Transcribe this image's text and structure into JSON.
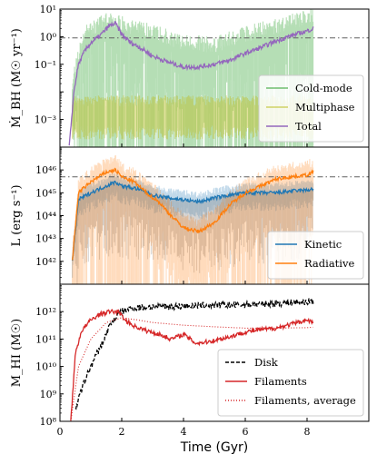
{
  "chart_data": [
    {
      "type": "line",
      "panel": "top",
      "ylabel": "Ṁ_BH (M☉ yr⁻¹)",
      "yscale": "log",
      "ylim": [
        0.0001,
        10
      ],
      "xlim": [
        0,
        10
      ],
      "y_ticks": [
        {
          "value": 0.001,
          "label": "10⁻³"
        },
        {
          "value": 0.1,
          "label": "10⁻¹"
        },
        {
          "value": 1,
          "label": "10⁰"
        },
        {
          "value": 10,
          "label": "10¹"
        }
      ],
      "reference_line": 0.9,
      "legend_position": "lower-right",
      "series": [
        {
          "name": "Cold-mode",
          "color": "#2ca02c",
          "style": "filled-noisy",
          "x": [
            0.4,
            0.8,
            1.5,
            2,
            3,
            4,
            5,
            6,
            7,
            8,
            8.2
          ],
          "y": [
            0.01,
            0.6,
            1.5,
            1.2,
            0.6,
            0.25,
            0.2,
            0.5,
            1,
            2,
            2
          ]
        },
        {
          "name": "Multiphase",
          "color": "#bcbd22",
          "style": "filled-noisy",
          "x": [
            0.4,
            1,
            2,
            3,
            4,
            5,
            6,
            7,
            8,
            8.2
          ],
          "y": [
            0.0015,
            0.0015,
            0.0015,
            0.0015,
            0.0015,
            0.0015,
            0.0015,
            0.0015,
            0.0015,
            0.0015
          ]
        },
        {
          "name": "Total",
          "color": "#9467bd",
          "style": "line",
          "x": [
            0.3,
            0.45,
            0.6,
            0.8,
            1,
            1.3,
            1.6,
            1.8,
            2.0,
            2.3,
            2.6,
            3,
            3.5,
            4,
            4.5,
            5,
            5.5,
            6,
            6.5,
            7,
            7.5,
            8,
            8.2
          ],
          "y": [
            0.0001,
            0.01,
            0.1,
            0.3,
            0.6,
            1.1,
            2.5,
            3,
            1.2,
            0.6,
            0.4,
            0.2,
            0.12,
            0.08,
            0.08,
            0.1,
            0.14,
            0.25,
            0.4,
            0.7,
            1.1,
            1.6,
            2
          ]
        }
      ]
    },
    {
      "type": "line",
      "panel": "middle",
      "ylabel": "L (erg s⁻¹)",
      "yscale": "log",
      "ylim": [
        1e+41,
        1e+47
      ],
      "xlim": [
        0,
        10
      ],
      "y_ticks": [
        {
          "value": 1e+42,
          "label": "10⁴²"
        },
        {
          "value": 1e+43,
          "label": "10⁴³"
        },
        {
          "value": 1e+44,
          "label": "10⁴⁴"
        },
        {
          "value": 1e+45,
          "label": "10⁴⁵"
        },
        {
          "value": 1e+46,
          "label": "10⁴⁶"
        }
      ],
      "reference_line": 5e+45,
      "legend_position": "lower-right",
      "series": [
        {
          "name": "Kinetic",
          "color": "#1f77b4",
          "style": "line-with-band",
          "x": [
            0.4,
            0.6,
            1,
            1.5,
            1.8,
            2,
            2.5,
            3,
            3.5,
            4,
            4.5,
            5,
            5.5,
            6,
            6.5,
            7,
            7.5,
            8,
            8.2
          ],
          "y": [
            1e+42,
            5e+44,
            1e+45,
            2e+45,
            3e+45,
            2e+45,
            1.5e+45,
            8e+44,
            6e+44,
            5e+44,
            4e+44,
            6e+44,
            8e+44,
            1e+45,
            1e+45,
            1e+45,
            1.2e+45,
            1.3e+45,
            1.5e+45
          ]
        },
        {
          "name": "Radiative",
          "color": "#ff7f0e",
          "style": "line-with-band",
          "x": [
            0.4,
            0.6,
            1,
            1.5,
            1.8,
            2,
            2.4,
            2.8,
            3.2,
            3.6,
            4,
            4.5,
            5,
            5.5,
            6,
            6.5,
            7,
            7.5,
            8,
            8.2
          ],
          "y": [
            1e+42,
            1e+45,
            3e+45,
            8e+45,
            1e+46,
            5e+45,
            3e+45,
            1e+45,
            4e+44,
            1e+44,
            3e+43,
            2e+43,
            5e+43,
            3e+44,
            1e+45,
            2e+45,
            4e+45,
            5e+45,
            6e+45,
            8e+45
          ]
        }
      ]
    },
    {
      "type": "line",
      "panel": "bottom",
      "ylabel": "M_HI (M☉)",
      "xlabel": "Time (Gyr)",
      "yscale": "log",
      "ylim": [
        100000000.0,
        10000000000000.0
      ],
      "xlim": [
        0,
        10
      ],
      "x_ticks": [
        0,
        2,
        4,
        6,
        8
      ],
      "y_ticks": [
        {
          "value": 100000000.0,
          "label": "10⁸"
        },
        {
          "value": 1000000000.0,
          "label": "10⁹"
        },
        {
          "value": 10000000000.0,
          "label": "10¹⁰"
        },
        {
          "value": 100000000000.0,
          "label": "10¹¹"
        },
        {
          "value": 1000000000000.0,
          "label": "10¹²"
        }
      ],
      "legend_position": "lower-right",
      "series": [
        {
          "name": "Disk",
          "color": "#000000",
          "style": "dashed",
          "x": [
            0.5,
            0.8,
            1,
            1.2,
            1.4,
            1.6,
            1.8,
            2,
            2.2,
            2.5,
            3,
            4,
            5,
            6,
            7,
            8,
            8.2
          ],
          "y": [
            300000000.0,
            3000000000.0,
            10000000000.0,
            30000000000.0,
            80000000000.0,
            300000000000.0,
            600000000000.0,
            1000000000000.0,
            1200000000000.0,
            1400000000000.0,
            1500000000000.0,
            1600000000000.0,
            1700000000000.0,
            1800000000000.0,
            2000000000000.0,
            2300000000000.0,
            2400000000000.0
          ]
        },
        {
          "name": "Filaments",
          "color": "#d62728",
          "style": "solid",
          "x": [
            0.35,
            0.5,
            0.7,
            1,
            1.3,
            1.6,
            1.9,
            2.1,
            2.4,
            2.8,
            3.2,
            3.6,
            4,
            4.4,
            4.8,
            5.2,
            5.6,
            6,
            6.5,
            7,
            7.5,
            8,
            8.2
          ],
          "y": [
            100000000.0,
            30000000000.0,
            200000000000.0,
            500000000000.0,
            800000000000.0,
            1000000000000.0,
            1000000000000.0,
            500000000000.0,
            300000000000.0,
            200000000000.0,
            150000000000.0,
            100000000000.0,
            150000000000.0,
            70000000000.0,
            80000000000.0,
            100000000000.0,
            130000000000.0,
            180000000000.0,
            220000000000.0,
            250000000000.0,
            350000000000.0,
            500000000000.0,
            400000000000.0
          ]
        },
        {
          "name": "Filaments, average",
          "color": "#d62728",
          "style": "dotted",
          "x": [
            0.35,
            0.6,
            1,
            1.5,
            2,
            2.5,
            3,
            4,
            5,
            6,
            7,
            8,
            8.2
          ],
          "y": [
            100000000.0,
            10000000000.0,
            100000000000.0,
            400000000000.0,
            600000000000.0,
            500000000000.0,
            400000000000.0,
            320000000000.0,
            280000000000.0,
            250000000000.0,
            250000000000.0,
            260000000000.0,
            270000000000.0
          ]
        }
      ]
    }
  ]
}
